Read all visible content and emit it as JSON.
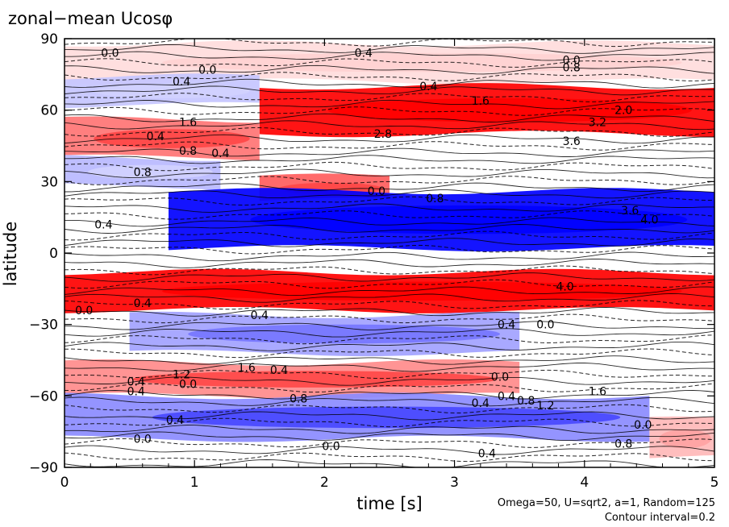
{
  "chart_data": {
    "type": "heatmap",
    "title": "zonal−mean Ucosφ",
    "xlabel": "time [s]",
    "ylabel": "latitude",
    "xlim": [
      0,
      5
    ],
    "ylim": [
      -90,
      90
    ],
    "x_ticks": [
      "0",
      "1",
      "2",
      "3",
      "4",
      "5"
    ],
    "y_ticks": [
      "90",
      "60",
      "30",
      "0",
      "−30",
      "−60",
      "−90"
    ],
    "notes": [
      "Omega=50, U=sqrt2, a=1, Random=125",
      "Contour interval=0.2"
    ],
    "colors": {
      "positive": "#ff0000",
      "negative": "#0000ff",
      "zero": "#ffffff"
    },
    "bands": [
      {
        "x": [
          0,
          5
        ],
        "y": [
          72,
          88
        ],
        "values": [
          0.2,
          0.4
        ]
      },
      {
        "x": [
          0,
          1.5
        ],
        "y": [
          62,
          74
        ],
        "values": [
          -0.6,
          -0.4
        ]
      },
      {
        "x": [
          1.5,
          5
        ],
        "y": [
          50,
          70
        ],
        "values": [
          1.6,
          3.6
        ]
      },
      {
        "x": [
          0,
          1.5
        ],
        "y": [
          40,
          56
        ],
        "values": [
          0.8,
          1.6
        ]
      },
      {
        "x": [
          0,
          1.2
        ],
        "y": [
          28,
          40
        ],
        "values": [
          -0.8,
          -0.4
        ]
      },
      {
        "x": [
          1.5,
          2.5
        ],
        "y": [
          22,
          32
        ],
        "values": [
          1.2,
          1.6
        ]
      },
      {
        "x": [
          0.8,
          5
        ],
        "y": [
          2,
          26
        ],
        "values": [
          -1.2,
          -4.0
        ]
      },
      {
        "x": [
          0,
          5
        ],
        "y": [
          -24,
          -8
        ],
        "values": [
          0.8,
          4.0
        ]
      },
      {
        "x": [
          0.5,
          3.5
        ],
        "y": [
          -42,
          -26
        ],
        "values": [
          -0.4,
          -1.2
        ]
      },
      {
        "x": [
          0,
          3.5
        ],
        "y": [
          -60,
          -46
        ],
        "values": [
          0.4,
          1.6
        ]
      },
      {
        "x": [
          0,
          4.5
        ],
        "y": [
          -78,
          -60
        ],
        "values": [
          -0.4,
          -1.6
        ]
      },
      {
        "x": [
          4.5,
          5
        ],
        "y": [
          -86,
          -70
        ],
        "values": [
          0.4,
          0.8
        ]
      }
    ],
    "contour_labels": [
      {
        "text": "0.0",
        "x": 0.35,
        "y": 84
      },
      {
        "text": "0.4",
        "x": 2.3,
        "y": 84
      },
      {
        "text": "0.0",
        "x": 1.1,
        "y": 77
      },
      {
        "text": "0.4",
        "x": 0.9,
        "y": 72
      },
      {
        "text": "0.4",
        "x": 2.8,
        "y": 70
      },
      {
        "text": "0.0",
        "x": 3.9,
        "y": 81
      },
      {
        "text": "0.8",
        "x": 3.9,
        "y": 78
      },
      {
        "text": "1.6",
        "x": 3.2,
        "y": 64
      },
      {
        "text": "2.0",
        "x": 4.3,
        "y": 60
      },
      {
        "text": "1.6",
        "x": 0.95,
        "y": 55
      },
      {
        "text": "3.2",
        "x": 4.1,
        "y": 55
      },
      {
        "text": "2.8",
        "x": 2.45,
        "y": 50
      },
      {
        "text": "0.4",
        "x": 0.7,
        "y": 49
      },
      {
        "text": "3.6",
        "x": 3.9,
        "y": 47
      },
      {
        "text": "0.8",
        "x": 0.95,
        "y": 43
      },
      {
        "text": "0.4",
        "x": 1.2,
        "y": 42
      },
      {
        "text": "0.8",
        "x": 0.6,
        "y": 34
      },
      {
        "text": "0.0",
        "x": 2.4,
        "y": 26
      },
      {
        "text": "0.8",
        "x": 2.85,
        "y": 23
      },
      {
        "text": "0.4",
        "x": 0.3,
        "y": 12
      },
      {
        "text": "3.6",
        "x": 4.35,
        "y": 18
      },
      {
        "text": "4.0",
        "x": 4.5,
        "y": 14
      },
      {
        "text": "0.0",
        "x": 0.15,
        "y": -24
      },
      {
        "text": "0.4",
        "x": 0.6,
        "y": -21
      },
      {
        "text": "4.0",
        "x": 3.85,
        "y": -14
      },
      {
        "text": "0.4",
        "x": 3.4,
        "y": -30
      },
      {
        "text": "0.0",
        "x": 3.7,
        "y": -30
      },
      {
        "text": "0.4",
        "x": 1.5,
        "y": -26
      },
      {
        "text": "1.6",
        "x": 1.4,
        "y": -48
      },
      {
        "text": "1.2",
        "x": 0.9,
        "y": -51
      },
      {
        "text": "0.4",
        "x": 1.65,
        "y": -49
      },
      {
        "text": "0.4",
        "x": 0.55,
        "y": -54
      },
      {
        "text": "0.0",
        "x": 0.95,
        "y": -55
      },
      {
        "text": "0.4",
        "x": 0.55,
        "y": -58
      },
      {
        "text": "0.8",
        "x": 1.8,
        "y": -61
      },
      {
        "text": "0.0",
        "x": 3.35,
        "y": -52
      },
      {
        "text": "0.4",
        "x": 3.2,
        "y": -63
      },
      {
        "text": "0.4",
        "x": 3.4,
        "y": -60
      },
      {
        "text": "0.8",
        "x": 3.55,
        "y": -62
      },
      {
        "text": "1.2",
        "x": 3.7,
        "y": -64
      },
      {
        "text": "1.6",
        "x": 4.1,
        "y": -58
      },
      {
        "text": "0.4",
        "x": 0.85,
        "y": -70
      },
      {
        "text": "0.0",
        "x": 0.6,
        "y": -78
      },
      {
        "text": "0.0",
        "x": 2.05,
        "y": -81
      },
      {
        "text": "0.4",
        "x": 3.25,
        "y": -84
      },
      {
        "text": "0.8",
        "x": 4.3,
        "y": -80
      },
      {
        "text": "0.0",
        "x": 4.45,
        "y": -72
      }
    ]
  }
}
